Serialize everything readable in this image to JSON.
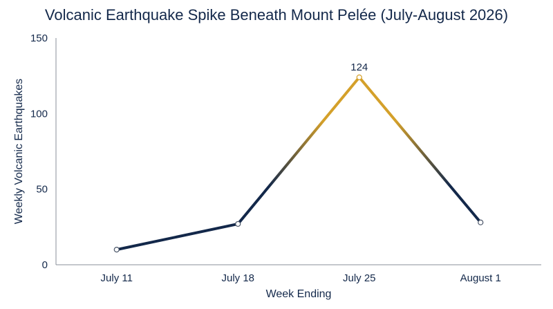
{
  "chart_data": {
    "type": "line",
    "title": "Volcanic Earthquake Spike Beneath Mount Pelée (July-August 2026)",
    "xlabel": "Week Ending",
    "ylabel": "Weekly Volcanic Earthquakes",
    "categories": [
      "July 11",
      "July 18",
      "July 25",
      "August 1"
    ],
    "series": [
      {
        "values": [
          10,
          27,
          124,
          28
        ]
      }
    ],
    "ylim": [
      0,
      150
    ],
    "yticks": [
      0,
      50,
      100,
      150
    ],
    "data_labels": [
      {
        "index": 2,
        "text": "124"
      }
    ],
    "grid": false,
    "legend": "none",
    "colors": {
      "line": "#13284a",
      "peak": "#d4a02a",
      "text": "#13284a",
      "axis": "#8a8f99",
      "marker_fill": "#ffffff"
    }
  }
}
